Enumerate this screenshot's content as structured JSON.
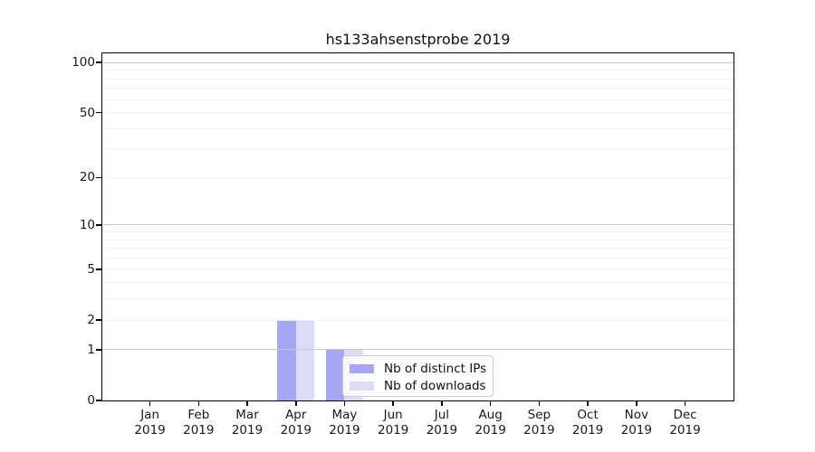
{
  "chart_data": {
    "type": "bar",
    "title": "hs133ahsenstprobe 2019",
    "categories": [
      "Jan",
      "Feb",
      "Mar",
      "Apr",
      "May",
      "Jun",
      "Jul",
      "Aug",
      "Sep",
      "Oct",
      "Nov",
      "Dec"
    ],
    "category_year": "2019",
    "series": [
      {
        "name": "Nb of distinct IPs",
        "color": "#a6a6f2",
        "values": [
          0,
          0,
          0,
          2,
          1,
          0,
          0,
          0,
          0,
          0,
          0,
          0
        ]
      },
      {
        "name": "Nb of downloads",
        "color": "#dcdcf8",
        "values": [
          0,
          0,
          0,
          2,
          1,
          0,
          0,
          0,
          0,
          0,
          0,
          0
        ]
      }
    ],
    "xlabel": "",
    "ylabel": "",
    "yscale": "log1p",
    "ylim": [
      0,
      113
    ],
    "yticks": [
      0,
      1,
      2,
      5,
      10,
      20,
      50,
      100
    ],
    "grid": {
      "major_values": [
        1,
        10,
        100
      ],
      "minor_values": [
        2,
        3,
        4,
        5,
        6,
        7,
        8,
        9,
        20,
        30,
        40,
        50,
        60,
        70,
        80,
        90
      ],
      "major_color": "#c9c9c9",
      "minor_color": "#efefef"
    },
    "legend_position": "lower-center",
    "spine_color": "#000000"
  }
}
